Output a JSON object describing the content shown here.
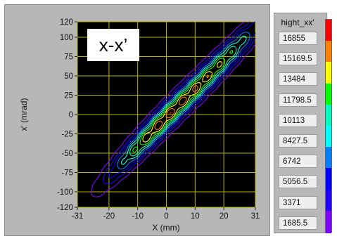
{
  "chart_data": {
    "type": "heatmap",
    "title": "x-x’",
    "xlabel": "X (mm)",
    "ylabel": "x' (mrad)",
    "xlim": [
      -31,
      31
    ],
    "ylim": [
      -120,
      120
    ],
    "x_ticks": [
      "-31",
      "-20",
      "-10",
      "0",
      "10",
      "20",
      "31"
    ],
    "y_ticks": [
      "120",
      "100",
      "75",
      "50",
      "25",
      "0",
      "-25",
      "-50",
      "-75",
      "-100",
      "-120"
    ],
    "grid": true,
    "legend_title": "hight_xx'",
    "legend_levels": [
      "16855",
      "15169.5",
      "13484",
      "11798.5",
      "10113",
      "8427.5",
      "6742",
      "5056.5",
      "3371",
      "1685.5"
    ],
    "legend_colors": [
      "#ff0000",
      "#ff7f00",
      "#ffff00",
      "#00ff00",
      "#00ffbf",
      "#00ffff",
      "#007fff",
      "#0000ff",
      "#1f00ff",
      "#7f00ff"
    ],
    "contour_levels": [
      1685.5,
      3371,
      5056.5,
      6742,
      8427.5,
      10113,
      11798.5,
      13484,
      15169.5,
      16855
    ],
    "distribution": {
      "cores": [
        {
          "x": -4,
          "y": -18,
          "w": 0.65
        },
        {
          "x": 18,
          "y": 62,
          "w": 0.55
        }
      ],
      "correlation": 3.8,
      "sigma_x": 11.0,
      "sigma_y_residual": 13.0
    }
  }
}
